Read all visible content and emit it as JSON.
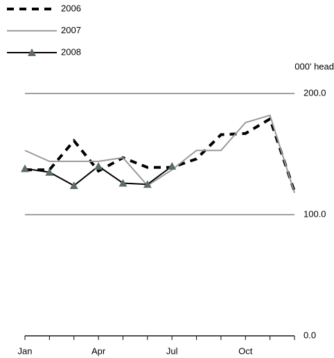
{
  "chart_data": {
    "type": "line",
    "y_label": "000' head",
    "categories": [
      "Jan",
      null,
      null,
      "Apr",
      null,
      null,
      "Jul",
      null,
      null,
      "Oct",
      null,
      null
    ],
    "series": [
      {
        "name": "2006",
        "color": "#000000",
        "style": "dashed",
        "values": [
          137,
          137,
          161,
          136,
          147,
          139,
          139,
          146,
          166,
          167,
          179,
          119
        ]
      },
      {
        "name": "2007",
        "color": "#999999",
        "style": "solid",
        "values": [
          153,
          144,
          144,
          144,
          147,
          124,
          137,
          153,
          153,
          176,
          182,
          118
        ]
      },
      {
        "name": "2008",
        "color": "#000000",
        "style": "solid",
        "marker": "triangle",
        "marker_color": "#5e6b68",
        "values": [
          138,
          135,
          124,
          140,
          126,
          125,
          140,
          null,
          null,
          null,
          null,
          null
        ]
      }
    ],
    "ylim": [
      0,
      200
    ],
    "yticks": [
      {
        "value": 0,
        "label": "0.0"
      },
      {
        "value": 100,
        "label": "100.0"
      },
      {
        "value": 200,
        "label": "200.0"
      }
    ],
    "grid": true
  }
}
